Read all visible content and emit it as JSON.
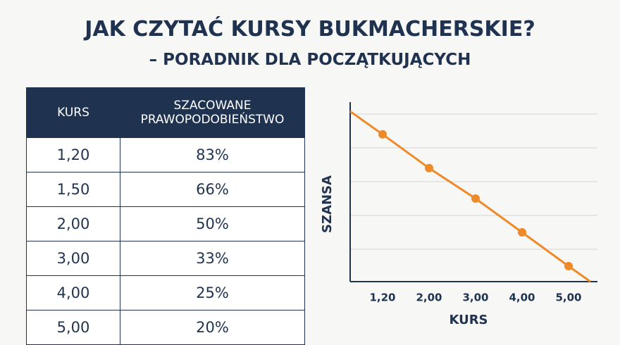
{
  "header": {
    "title": "JAK CZYTAĆ KURSY BUKMACHERSKIE?",
    "subtitle": "– PORADNIK DLA POCZĄTKUJĄCYCH"
  },
  "table": {
    "headers": [
      "KURS",
      "SZACOWANE PRAWOPODOBIEŃSTWO"
    ],
    "rows": [
      [
        "1,20",
        "83%"
      ],
      [
        "1,50",
        "66%"
      ],
      [
        "2,00",
        "50%"
      ],
      [
        "3,00",
        "33%"
      ],
      [
        "4,00",
        "25%"
      ],
      [
        "5,00",
        "20%"
      ]
    ]
  },
  "chart_data": {
    "type": "line",
    "x_label": "KURS",
    "y_label": "SZANSA",
    "categories": [
      "1,20",
      "2,00",
      "3,00",
      "4,00",
      "5,00"
    ],
    "values": [
      4.4,
      3.4,
      2.5,
      1.5,
      0.5
    ],
    "color": "#ef8a2a",
    "ylim": [
      0,
      5
    ],
    "yticks": [
      1,
      2,
      3,
      4,
      5
    ],
    "grid": true
  }
}
